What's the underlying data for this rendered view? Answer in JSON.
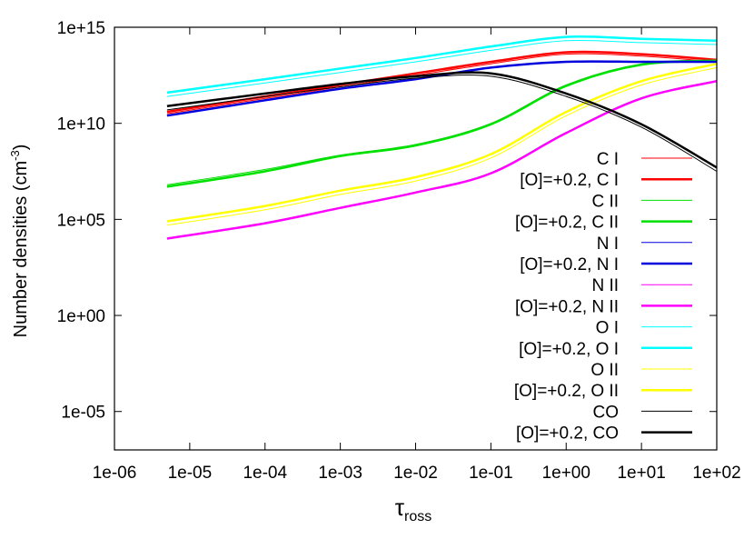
{
  "chart_data": {
    "type": "line",
    "xlabel_main": "τ",
    "xlabel_sub": "ross",
    "ylabel_main": "Number densities (cm",
    "ylabel_sup": "-3",
    "ylabel_end": ")",
    "x_scale": "log",
    "y_scale": "log",
    "xlim": [
      1e-06,
      100
    ],
    "ylim": [
      1e-07,
      1000000000000000.0
    ],
    "x_ticks": [
      {
        "value": 1e-06,
        "label": "1e-06"
      },
      {
        "value": 1e-05,
        "label": "1e-05"
      },
      {
        "value": 0.0001,
        "label": "1e-04"
      },
      {
        "value": 0.001,
        "label": "1e-03"
      },
      {
        "value": 0.01,
        "label": "1e-02"
      },
      {
        "value": 0.1,
        "label": "1e-01"
      },
      {
        "value": 1,
        "label": "1e+00"
      },
      {
        "value": 10,
        "label": "1e+01"
      },
      {
        "value": 100,
        "label": "1e+02"
      }
    ],
    "y_ticks": [
      {
        "value": 1e-05,
        "label": "1e-05"
      },
      {
        "value": 1,
        "label": "1e+00"
      },
      {
        "value": 100000,
        "label": "1e+05"
      },
      {
        "value": 10000000000.0,
        "label": "1e+10"
      },
      {
        "value": 1000000000000000.0,
        "label": "1e+15"
      }
    ],
    "grid": false,
    "legend_position": "right",
    "x": [
      5e-06,
      0.0001,
      0.001,
      0.01,
      0.1,
      1,
      10,
      100
    ],
    "series": [
      {
        "name": "C I",
        "color": "#ff0000",
        "width": 1,
        "log10_y": [
          10.5,
          11.3,
          11.9,
          12.5,
          13.1,
          13.6,
          13.5,
          13.2
        ]
      },
      {
        "name": "[O]=+0.2, C I",
        "color": "#ff0000",
        "width": 2.5,
        "log10_y": [
          10.6,
          11.4,
          12.0,
          12.6,
          13.2,
          13.7,
          13.6,
          13.3
        ]
      },
      {
        "name": "C II",
        "color": "#00e000",
        "width": 1,
        "log10_y": [
          6.8,
          7.6,
          8.35,
          8.9,
          10.0,
          12.0,
          13.1,
          13.3
        ]
      },
      {
        "name": "[O]=+0.2, C II",
        "color": "#00e000",
        "width": 2.5,
        "log10_y": [
          6.7,
          7.5,
          8.3,
          8.85,
          9.95,
          11.95,
          13.05,
          13.25
        ]
      },
      {
        "name": "N I",
        "color": "#0000dd",
        "width": 1,
        "log10_y": [
          10.4,
          11.2,
          11.8,
          12.3,
          12.9,
          13.2,
          13.2,
          13.2
        ]
      },
      {
        "name": "[O]=+0.2, N I",
        "color": "#0000dd",
        "width": 2.5,
        "log10_y": [
          10.4,
          11.2,
          11.8,
          12.3,
          12.9,
          13.2,
          13.2,
          13.2
        ]
      },
      {
        "name": "N II",
        "color": "#ff00ff",
        "width": 1,
        "log10_y": [
          4.0,
          4.8,
          5.6,
          6.4,
          7.4,
          9.5,
          11.3,
          12.2
        ]
      },
      {
        "name": "[O]=+0.2, N II",
        "color": "#ff00ff",
        "width": 2.5,
        "log10_y": [
          4.0,
          4.8,
          5.6,
          6.4,
          7.4,
          9.5,
          11.3,
          12.2
        ]
      },
      {
        "name": "O I",
        "color": "#00ffff",
        "width": 1,
        "log10_y": [
          11.4,
          12.1,
          12.65,
          13.2,
          13.8,
          14.3,
          14.2,
          14.1
        ]
      },
      {
        "name": "[O]=+0.2, O I",
        "color": "#00ffff",
        "width": 2.5,
        "log10_y": [
          11.6,
          12.3,
          12.85,
          13.4,
          14.0,
          14.5,
          14.4,
          14.3
        ]
      },
      {
        "name": "O II",
        "color": "#ffff00",
        "width": 1,
        "log10_y": [
          4.7,
          5.5,
          6.3,
          7.0,
          8.2,
          10.4,
          12.0,
          12.9
        ]
      },
      {
        "name": "[O]=+0.2, O II",
        "color": "#ffff00",
        "width": 2.5,
        "log10_y": [
          4.9,
          5.7,
          6.5,
          7.2,
          8.4,
          10.6,
          12.2,
          13.1
        ]
      },
      {
        "name": "CO",
        "color": "#000000",
        "width": 1,
        "log10_y": [
          10.7,
          11.4,
          11.9,
          12.35,
          12.45,
          11.4,
          9.8,
          7.5
        ]
      },
      {
        "name": "[O]=+0.2, CO",
        "color": "#000000",
        "width": 2.5,
        "log10_y": [
          10.9,
          11.55,
          12.05,
          12.45,
          12.6,
          11.55,
          9.95,
          7.7
        ]
      }
    ]
  }
}
